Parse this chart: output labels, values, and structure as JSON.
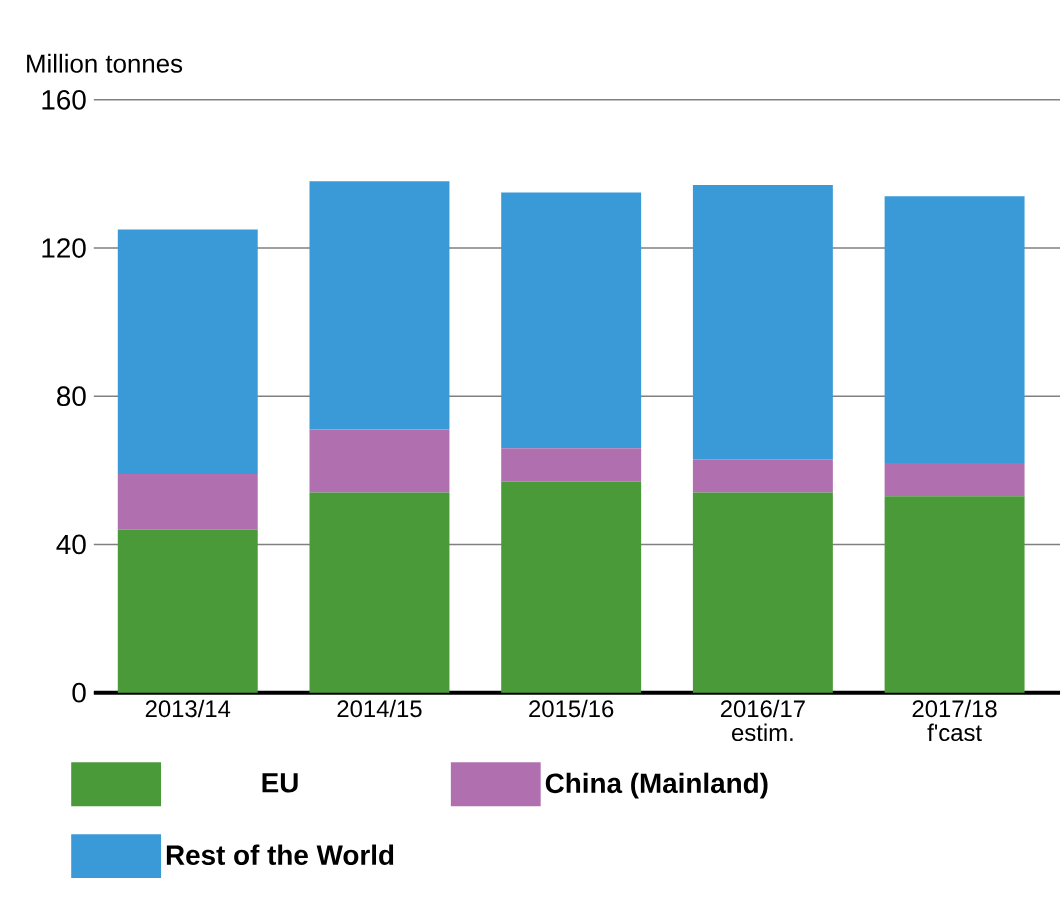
{
  "chart_data": {
    "type": "bar",
    "stacked": true,
    "ylabel": "Million tonnes",
    "categories": [
      "2013/14",
      "2014/15",
      "2015/16",
      "2016/17 estim.",
      "2017/18 f'cast"
    ],
    "series": [
      {
        "name": "EU",
        "color": "#4a9a3a",
        "values": [
          44,
          54,
          57,
          54,
          53
        ]
      },
      {
        "name": "China (Mainland)",
        "color": "#b070b0",
        "values": [
          15,
          17,
          9,
          9,
          9
        ]
      },
      {
        "name": "Rest of the World",
        "color": "#3a9ad8",
        "values": [
          66,
          67,
          69,
          74,
          72
        ]
      }
    ],
    "ylim": [
      0,
      160
    ],
    "yticks": [
      0,
      40,
      80,
      120,
      160
    ],
    "grid": "y",
    "legend": "bottom"
  }
}
